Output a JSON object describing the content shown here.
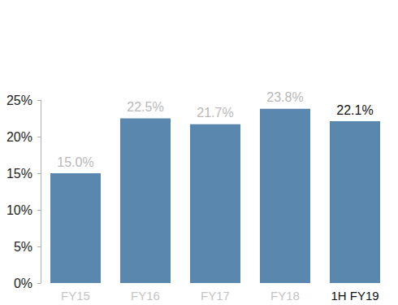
{
  "chart_data": {
    "type": "bar",
    "categories": [
      "FY15",
      "FY16",
      "FY17",
      "FY18",
      "1H FY19"
    ],
    "values": [
      15.0,
      22.5,
      21.7,
      23.8,
      22.1
    ],
    "value_labels": [
      "15.0%",
      "22.5%",
      "21.7%",
      "23.8%",
      "22.1%"
    ],
    "color": "#5a87ad",
    "ylim": [
      0,
      25
    ],
    "yticks": [
      {
        "value": 0,
        "label": "0%"
      },
      {
        "value": 5,
        "label": "5%"
      },
      {
        "value": 10,
        "label": "10%"
      },
      {
        "value": 15,
        "label": "15%"
      },
      {
        "value": 20,
        "label": "20%"
      },
      {
        "value": 25,
        "label": "25%"
      }
    ],
    "grid": false,
    "data_labels": true
  }
}
